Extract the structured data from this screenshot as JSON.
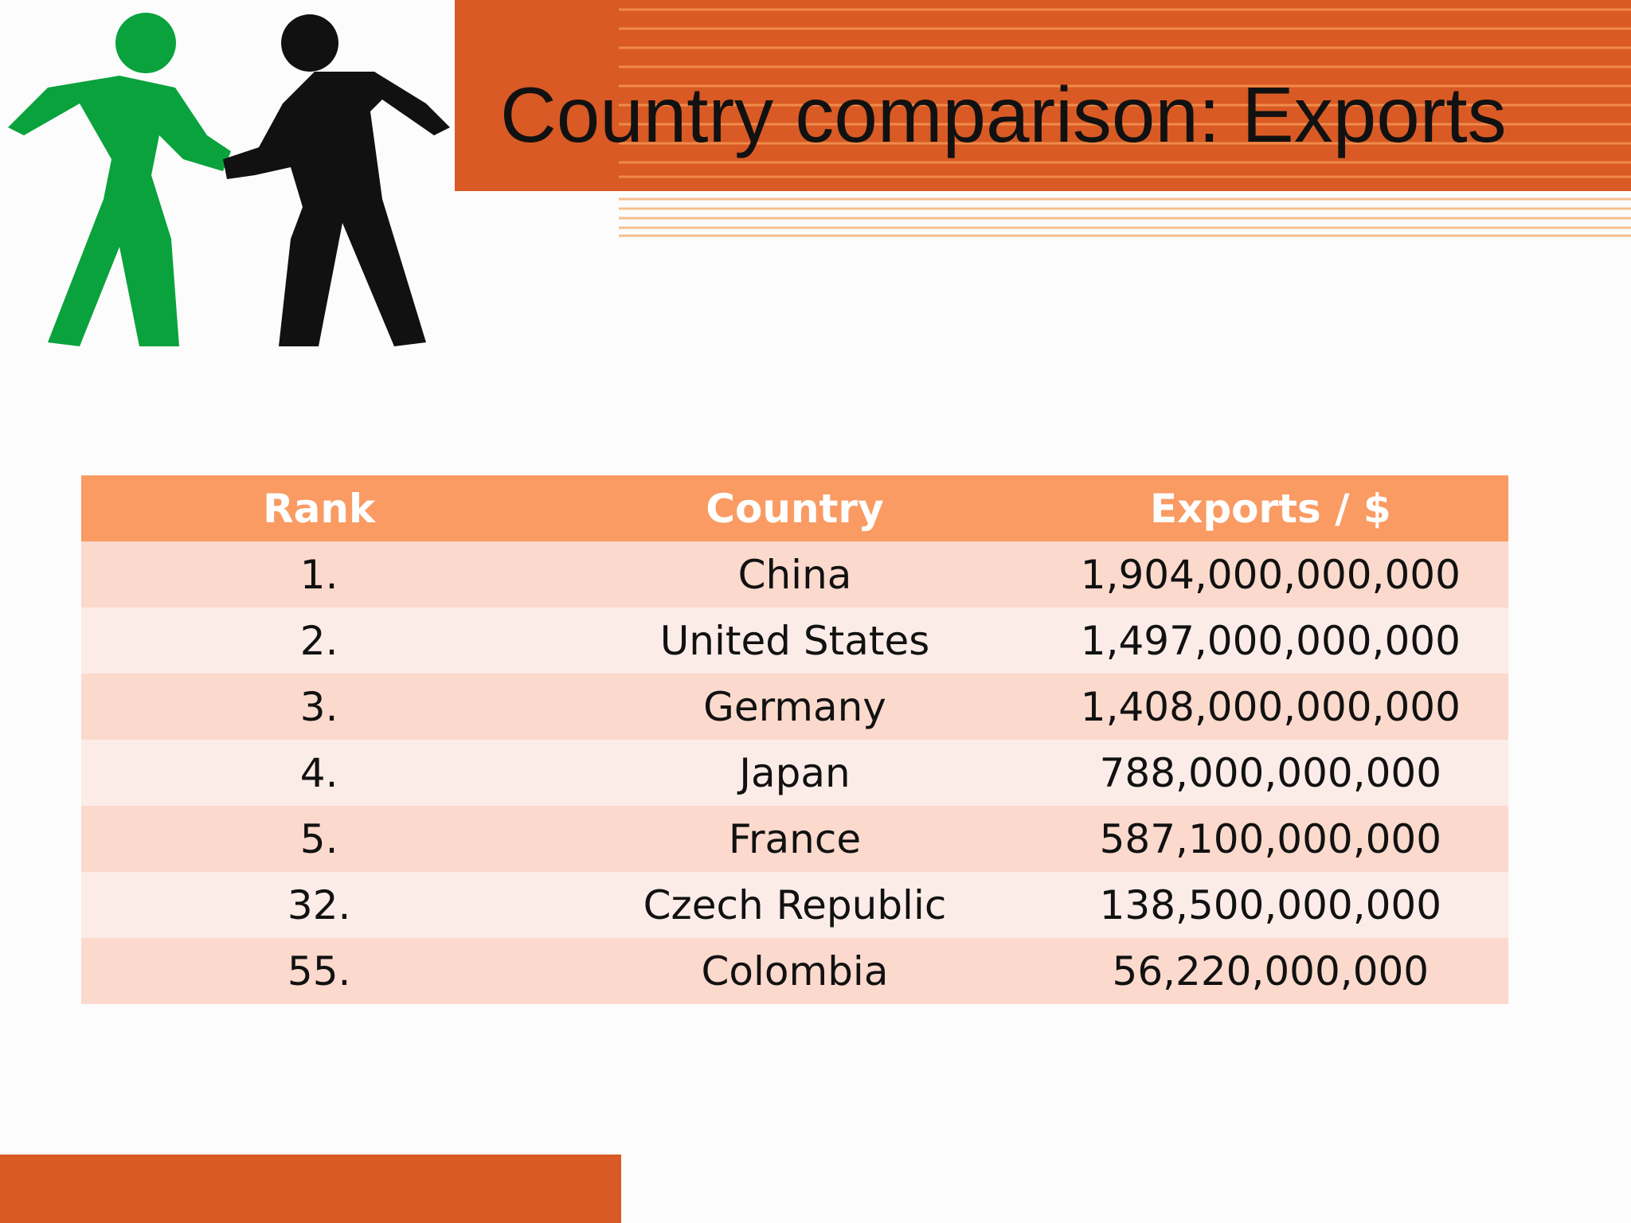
{
  "header": {
    "title": "Country comparison: Exports"
  },
  "table": {
    "columns": [
      "Rank",
      "Country",
      "Exports / $"
    ],
    "rows": [
      [
        "1.",
        "China",
        "1,904,000,000,000"
      ],
      [
        "2.",
        "United States",
        "1,497,000,000,000"
      ],
      [
        "3.",
        "Germany",
        "1,408,000,000,000"
      ],
      [
        "4.",
        "Japan",
        "788,000,000,000"
      ],
      [
        "5.",
        "France",
        "587,100,000,000"
      ],
      [
        "32.",
        "Czech Republic",
        "138,500,000,000"
      ],
      [
        "55.",
        "Colombia",
        "56,220,000,000"
      ]
    ]
  }
}
